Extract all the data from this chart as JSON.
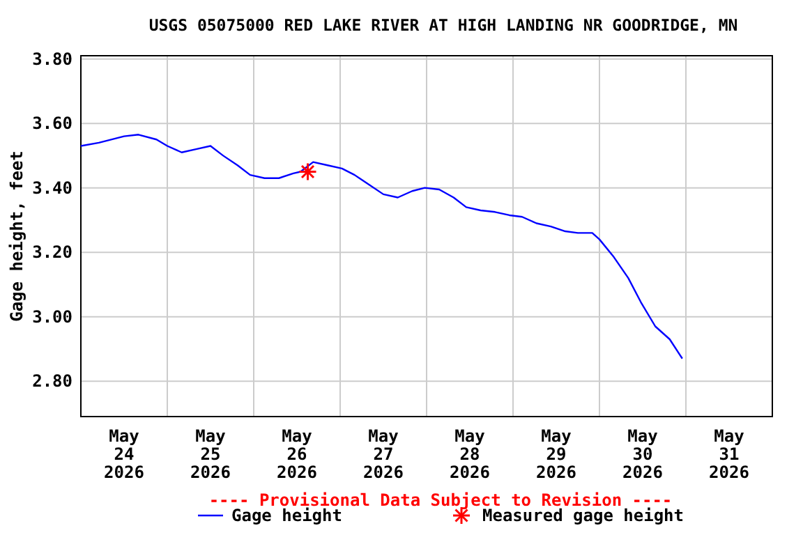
{
  "chart_data": {
    "type": "line",
    "title": "USGS 05075000 RED LAKE RIVER AT HIGH LANDING NR GOODRIDGE, MN",
    "ylabel": "Gage height, feet",
    "annotations": [
      "---- Provisional Data Subject to Revision ----"
    ],
    "xlim": [
      "2026-05-24T00:00",
      "2026-06-01T00:00"
    ],
    "xticks": [
      {
        "value": "2026-05-24T12:00",
        "label": "May\n24\n2026"
      },
      {
        "value": "2026-05-25T00:00",
        "label": null
      },
      {
        "value": "2026-05-25T12:00",
        "label": "May\n25\n2026"
      },
      {
        "value": "2026-05-26T00:00",
        "label": null
      },
      {
        "value": "2026-05-26T12:00",
        "label": "May\n26\n2026"
      },
      {
        "value": "2026-05-27T00:00",
        "label": null
      },
      {
        "value": "2026-05-27T12:00",
        "label": "May\n27\n2026"
      },
      {
        "value": "2026-05-28T00:00",
        "label": null
      },
      {
        "value": "2026-05-28T12:00",
        "label": "May\n28\n2026"
      },
      {
        "value": "2026-05-29T00:00",
        "label": null
      },
      {
        "value": "2026-05-29T12:00",
        "label": "May\n29\n2026"
      },
      {
        "value": "2026-05-30T00:00",
        "label": null
      },
      {
        "value": "2026-05-30T12:00",
        "label": "May\n30\n2026"
      },
      {
        "value": "2026-05-31T00:00",
        "label": null
      },
      {
        "value": "2026-05-31T12:00",
        "label": "May\n31\n2026"
      }
    ],
    "ylim": [
      2.69,
      3.81
    ],
    "yticks": [
      {
        "value": 2.8,
        "label": "2.80"
      },
      {
        "value": 3.0,
        "label": "3.00"
      },
      {
        "value": 3.2,
        "label": "3.20"
      },
      {
        "value": 3.4,
        "label": "3.40"
      },
      {
        "value": 3.6,
        "label": "3.60"
      },
      {
        "value": 3.8,
        "label": "3.80"
      }
    ],
    "grid": true,
    "legend": "bottom",
    "series": [
      {
        "name": "Gage height",
        "color": "#0000ff",
        "marker": "none",
        "line_style": "solid",
        "x": [
          "2026-05-24T00:00",
          "2026-05-24T05:00",
          "2026-05-24T12:00",
          "2026-05-24T16:00",
          "2026-05-24T21:00",
          "2026-05-25T00:00",
          "2026-05-25T04:00",
          "2026-05-25T08:00",
          "2026-05-25T12:00",
          "2026-05-25T15:30",
          "2026-05-25T19:30",
          "2026-05-25T23:00",
          "2026-05-26T03:00",
          "2026-05-26T07:00",
          "2026-05-26T11:00",
          "2026-05-26T13:00",
          "2026-05-26T16:30",
          "2026-05-26T20:30",
          "2026-05-27T00:30",
          "2026-05-27T04:00",
          "2026-05-27T08:00",
          "2026-05-27T12:00",
          "2026-05-27T16:00",
          "2026-05-27T20:00",
          "2026-05-27T23:30",
          "2026-05-28T03:30",
          "2026-05-28T07:30",
          "2026-05-28T11:00",
          "2026-05-28T15:00",
          "2026-05-28T19:00",
          "2026-05-28T23:00",
          "2026-05-29T02:30",
          "2026-05-29T06:30",
          "2026-05-29T10:30",
          "2026-05-29T14:30",
          "2026-05-29T18:00",
          "2026-05-29T22:00",
          "2026-05-30T00:00",
          "2026-05-30T04:00",
          "2026-05-30T08:00",
          "2026-05-30T11:30",
          "2026-05-30T15:30",
          "2026-05-30T19:30",
          "2026-05-30T23:00"
        ],
        "values": [
          3.53,
          3.54,
          3.56,
          3.565,
          3.55,
          3.53,
          3.51,
          3.52,
          3.53,
          3.5,
          3.47,
          3.44,
          3.43,
          3.43,
          3.445,
          3.45,
          3.48,
          3.47,
          3.46,
          3.44,
          3.41,
          3.38,
          3.37,
          3.39,
          3.4,
          3.395,
          3.37,
          3.34,
          3.33,
          3.325,
          3.315,
          3.31,
          3.29,
          3.28,
          3.265,
          3.26,
          3.26,
          3.24,
          3.185,
          3.12,
          3.045,
          2.97,
          2.93,
          2.87
        ]
      },
      {
        "name": "Measured gage height",
        "type": "scatter",
        "color": "#ff0000",
        "marker": "cross",
        "x": [
          "2026-05-26T15:00"
        ],
        "values": [
          3.45
        ]
      }
    ]
  }
}
